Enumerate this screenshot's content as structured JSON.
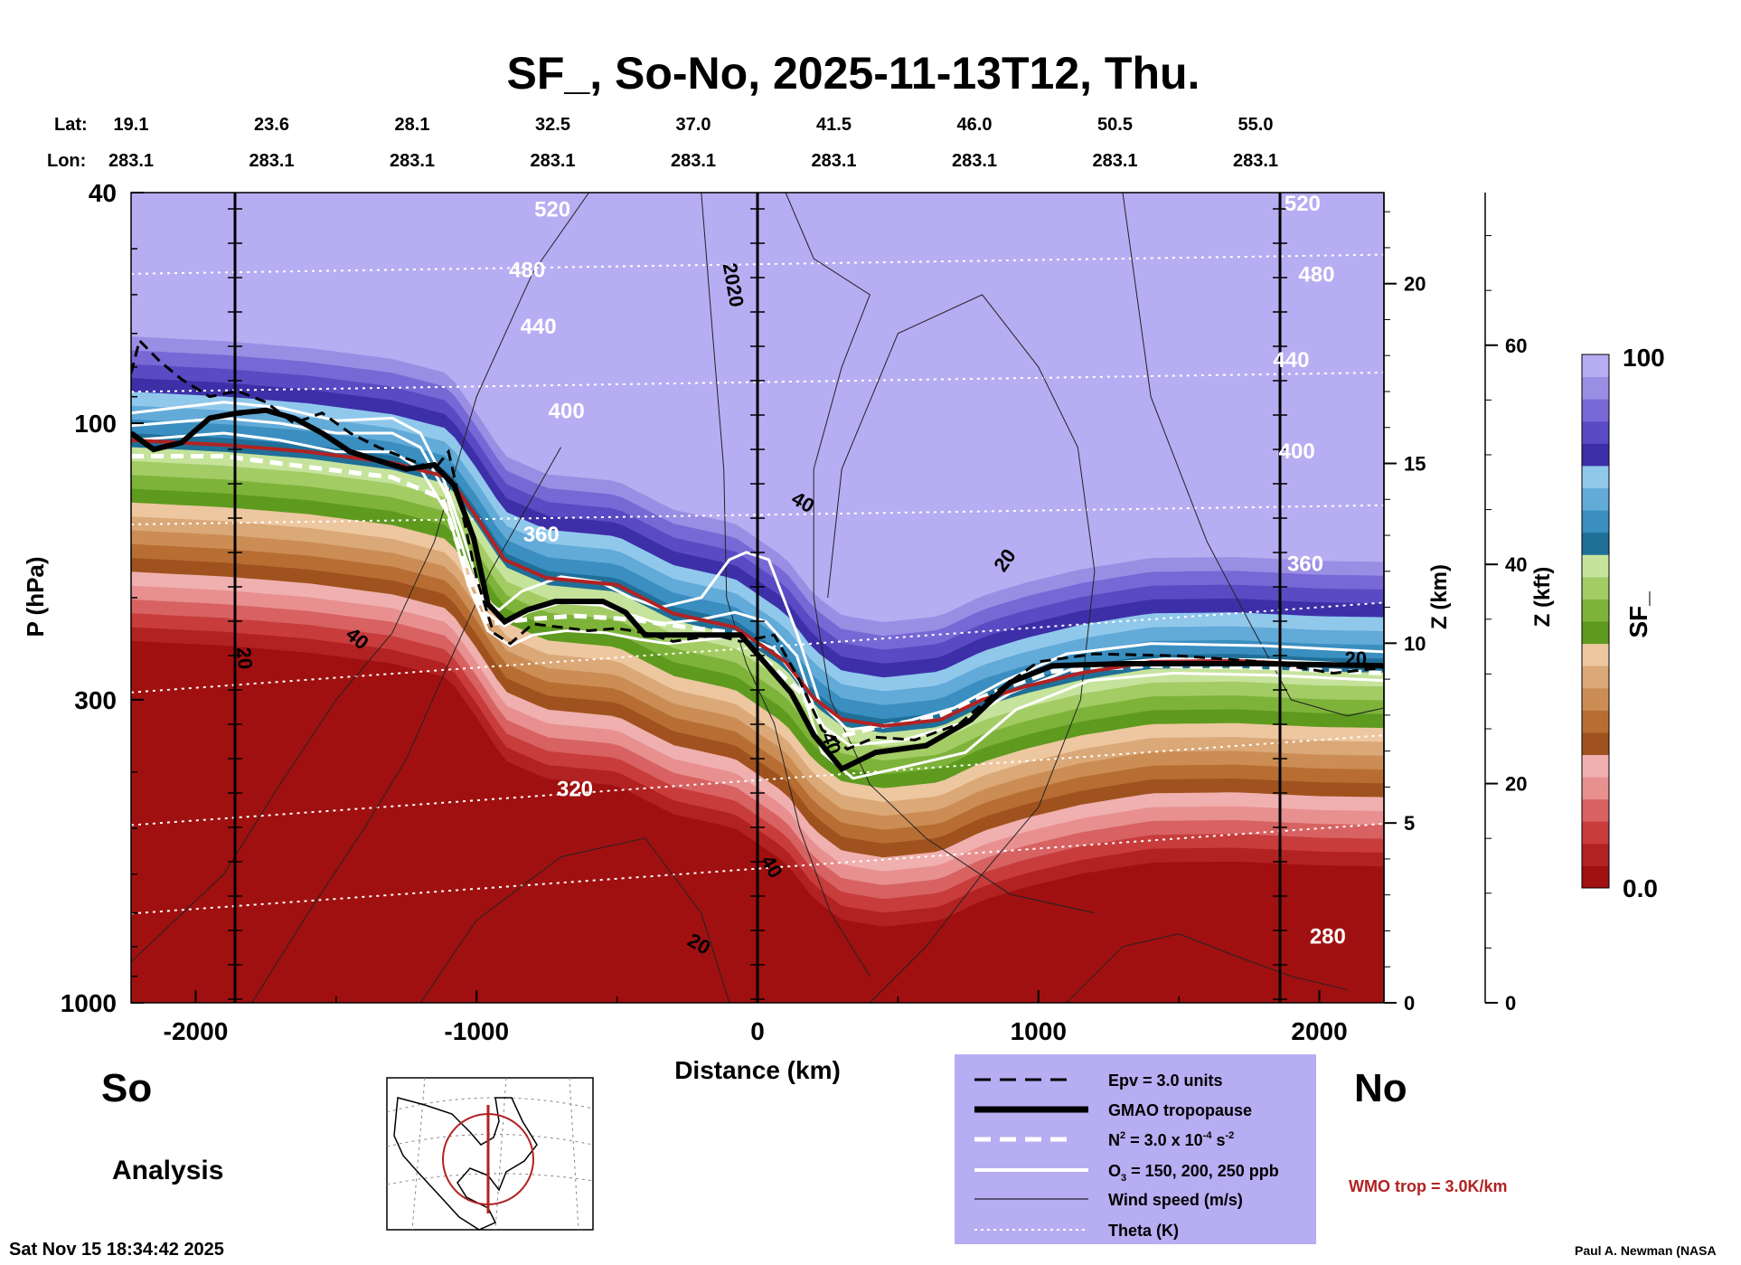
{
  "title": "SF_, So-No, 2025-11-13T12, Thu.",
  "lat_label": "Lat:",
  "lon_label": "Lon:",
  "stations": [
    {
      "lat": "19.1",
      "lon": "283.1"
    },
    {
      "lat": "23.6",
      "lon": "283.1"
    },
    {
      "lat": "28.1",
      "lon": "283.1"
    },
    {
      "lat": "32.5",
      "lon": "283.1"
    },
    {
      "lat": "37.0",
      "lon": "283.1"
    },
    {
      "lat": "41.5",
      "lon": "283.1"
    },
    {
      "lat": "46.0",
      "lon": "283.1"
    },
    {
      "lat": "50.5",
      "lon": "283.1"
    },
    {
      "lat": "55.0",
      "lon": "283.1"
    }
  ],
  "chart_data": {
    "type": "heatmap",
    "title": "SF_, So-No, 2025-11-13T12, Thu.",
    "xlabel": "Distance (km)",
    "ylabel": "P (hPa)",
    "ylabel_right_km": "Z (km)",
    "ylabel_right_kft": "Z (kft)",
    "xlim": [
      -2230,
      2230
    ],
    "ylim": [
      1000,
      40
    ],
    "y_scale": "log",
    "x_ticks": [
      -2000,
      -1000,
      0,
      1000,
      2000
    ],
    "x_tick_labels": [
      "-2000",
      "-1000",
      "0",
      "1000",
      "2000"
    ],
    "p_ticks": [
      40,
      100,
      300,
      1000
    ],
    "p_tick_labels": [
      "40",
      "100",
      "300",
      "1000"
    ],
    "z_km_ticks": [
      0,
      5,
      10,
      15,
      20
    ],
    "z_km_labels": [
      "0",
      "5",
      "10",
      "15",
      "20"
    ],
    "z_kft_ticks": [
      0,
      20,
      40,
      60
    ],
    "z_kft_labels": [
      "0",
      "20",
      "40",
      "60"
    ],
    "colorbar": {
      "label": "SF_",
      "min": 0.0,
      "max": 100,
      "min_label": "0.0",
      "max_label": "100"
    },
    "colors": [
      "#a01010",
      "#b22222",
      "#c83c3c",
      "#d86262",
      "#e89090",
      "#f0b0b0",
      "#a0521e",
      "#b86e33",
      "#cc8d55",
      "#dba878",
      "#edc7a0",
      "#5e9a1e",
      "#7eb33a",
      "#a3cc65",
      "#c6e39c",
      "#1f6f99",
      "#3a8ec0",
      "#62aad8",
      "#90c8ec",
      "#3d2fa8",
      "#5a4ac3",
      "#7868d6",
      "#9a8ee4",
      "#b7adf2"
    ],
    "pressure_annotations": [
      {
        "text": "520",
        "x": -730,
        "p": 44
      },
      {
        "text": "480",
        "x": -820,
        "p": 56
      },
      {
        "text": "440",
        "x": -780,
        "p": 70
      },
      {
        "text": "400",
        "x": -680,
        "p": 98
      },
      {
        "text": "360",
        "x": -770,
        "p": 160
      },
      {
        "text": "320",
        "x": -650,
        "p": 440
      },
      {
        "text": "520",
        "x": 1940,
        "p": 43
      },
      {
        "text": "480",
        "x": 1990,
        "p": 57
      },
      {
        "text": "440",
        "x": 1900,
        "p": 80
      },
      {
        "text": "400",
        "x": 1920,
        "p": 115
      },
      {
        "text": "360",
        "x": 1950,
        "p": 180
      },
      {
        "text": "280",
        "x": 2030,
        "p": 790
      }
    ],
    "wind_labels": [
      {
        "text": "2020",
        "x": -110,
        "p": 58,
        "rot": 80
      },
      {
        "text": "40",
        "x": 150,
        "p": 140,
        "rot": 30
      },
      {
        "text": "20",
        "x": 900,
        "p": 175,
        "rot": -55
      },
      {
        "text": "20",
        "x": -1850,
        "p": 255,
        "rot": 85
      },
      {
        "text": "40",
        "x": -1440,
        "p": 240,
        "rot": 40
      },
      {
        "text": "40",
        "x": 30,
        "p": 590,
        "rot": 60
      },
      {
        "text": "20",
        "x": -220,
        "p": 810,
        "rot": 30
      },
      {
        "text": "20",
        "x": 2130,
        "p": 262,
        "rot": 0
      },
      {
        "text": "40",
        "x": 240,
        "p": 360,
        "rot": 70
      }
    ],
    "gmao_tropopause": [
      [
        -2230,
        104
      ],
      [
        -2150,
        111
      ],
      [
        -2050,
        108
      ],
      [
        -1950,
        98
      ],
      [
        -1850,
        96
      ],
      [
        -1750,
        95
      ],
      [
        -1650,
        98
      ],
      [
        -1550,
        104
      ],
      [
        -1450,
        112
      ],
      [
        -1350,
        116
      ],
      [
        -1250,
        120
      ],
      [
        -1150,
        118
      ],
      [
        -1080,
        128
      ],
      [
        -1010,
        158
      ],
      [
        -960,
        205
      ],
      [
        -900,
        220
      ],
      [
        -820,
        210
      ],
      [
        -720,
        203
      ],
      [
        -550,
        203
      ],
      [
        -470,
        212
      ],
      [
        -400,
        232
      ],
      [
        -250,
        232
      ],
      [
        -60,
        232
      ],
      [
        120,
        292
      ],
      [
        200,
        345
      ],
      [
        300,
        395
      ],
      [
        420,
        370
      ],
      [
        600,
        360
      ],
      [
        760,
        325
      ],
      [
        900,
        280
      ],
      [
        1050,
        262
      ],
      [
        1300,
        260
      ],
      [
        1800,
        260
      ],
      [
        2230,
        262
      ]
    ],
    "wmo_tropopause": [
      [
        -2230,
        107
      ],
      [
        -1900,
        109
      ],
      [
        -1600,
        112
      ],
      [
        -1300,
        117
      ],
      [
        -1100,
        124
      ],
      [
        -1000,
        145
      ],
      [
        -900,
        172
      ],
      [
        -750,
        185
      ],
      [
        -500,
        190
      ],
      [
        -300,
        213
      ],
      [
        -80,
        225
      ],
      [
        100,
        258
      ],
      [
        200,
        298
      ],
      [
        300,
        324
      ],
      [
        450,
        333
      ],
      [
        650,
        325
      ],
      [
        800,
        300
      ],
      [
        950,
        285
      ],
      [
        1150,
        270
      ],
      [
        1400,
        258
      ],
      [
        1700,
        257
      ],
      [
        2000,
        261
      ],
      [
        2230,
        262
      ]
    ],
    "n2_line": [
      [
        -2230,
        114
      ],
      [
        -1900,
        114
      ],
      [
        -1600,
        119
      ],
      [
        -1300,
        124
      ],
      [
        -1120,
        135
      ],
      [
        -1040,
        178
      ],
      [
        -960,
        222
      ],
      [
        -820,
        218
      ],
      [
        -650,
        215
      ],
      [
        -450,
        218
      ],
      [
        -250,
        225
      ],
      [
        -80,
        230
      ],
      [
        150,
        290
      ],
      [
        260,
        350
      ],
      [
        420,
        335
      ],
      [
        650,
        320
      ],
      [
        850,
        290
      ],
      [
        1050,
        268
      ],
      [
        1400,
        262
      ],
      [
        1800,
        264
      ],
      [
        2230,
        270
      ]
    ],
    "epv_line": [
      [
        -2230,
        82
      ],
      [
        -2200,
        72
      ],
      [
        -2130,
        78
      ],
      [
        -2050,
        84
      ],
      [
        -1950,
        90
      ],
      [
        -1850,
        88
      ],
      [
        -1750,
        92
      ],
      [
        -1650,
        100
      ],
      [
        -1550,
        96
      ],
      [
        -1450,
        104
      ],
      [
        -1350,
        110
      ],
      [
        -1250,
        115
      ],
      [
        -1150,
        120
      ],
      [
        -1100,
        112
      ],
      [
        -1060,
        136
      ],
      [
        -1000,
        185
      ],
      [
        -940,
        230
      ],
      [
        -880,
        240
      ],
      [
        -800,
        222
      ],
      [
        -700,
        225
      ],
      [
        -600,
        228
      ],
      [
        -500,
        226
      ],
      [
        -400,
        230
      ],
      [
        -300,
        238
      ],
      [
        -150,
        232
      ],
      [
        -60,
        238
      ],
      [
        60,
        232
      ],
      [
        150,
        278
      ],
      [
        230,
        338
      ],
      [
        320,
        365
      ],
      [
        420,
        348
      ],
      [
        560,
        352
      ],
      [
        720,
        330
      ],
      [
        860,
        288
      ],
      [
        1000,
        258
      ],
      [
        1200,
        250
      ],
      [
        1500,
        252
      ],
      [
        1800,
        258
      ],
      [
        2050,
        270
      ],
      [
        2230,
        264
      ]
    ],
    "o3_lines": [
      [
        [
          -2230,
          96
        ],
        [
          -1900,
          92
        ],
        [
          -1700,
          94
        ],
        [
          -1500,
          99
        ],
        [
          -1300,
          98
        ],
        [
          -1200,
          104
        ],
        [
          -1120,
          124
        ],
        [
          -1050,
          155
        ],
        [
          -980,
          200
        ],
        [
          -920,
          210
        ],
        [
          -840,
          195
        ],
        [
          -700,
          184
        ],
        [
          -560,
          188
        ],
        [
          -450,
          200
        ],
        [
          -350,
          208
        ],
        [
          -200,
          200
        ],
        [
          -100,
          172
        ],
        [
          -40,
          167
        ],
        [
          40,
          172
        ],
        [
          140,
          230
        ],
        [
          220,
          302
        ],
        [
          320,
          338
        ],
        [
          500,
          330
        ],
        [
          700,
          310
        ],
        [
          880,
          278
        ],
        [
          1100,
          250
        ],
        [
          1400,
          240
        ],
        [
          1800,
          242
        ],
        [
          2230,
          248
        ]
      ],
      [
        [
          -2230,
          101
        ],
        [
          -1900,
          98
        ],
        [
          -1700,
          100
        ],
        [
          -1500,
          104
        ],
        [
          -1300,
          104
        ],
        [
          -1200,
          110
        ],
        [
          -1110,
          132
        ],
        [
          -1040,
          170
        ],
        [
          -970,
          212
        ],
        [
          -900,
          224
        ],
        [
          -820,
          212
        ],
        [
          -700,
          204
        ],
        [
          -560,
          206
        ],
        [
          -450,
          214
        ],
        [
          -350,
          222
        ],
        [
          -200,
          218
        ],
        [
          -80,
          212
        ],
        [
          30,
          220
        ],
        [
          140,
          252
        ],
        [
          220,
          330
        ],
        [
          330,
          360
        ],
        [
          520,
          352
        ],
        [
          720,
          330
        ],
        [
          900,
          292
        ],
        [
          1150,
          262
        ],
        [
          1450,
          255
        ],
        [
          1800,
          256
        ],
        [
          2230,
          262
        ]
      ],
      [
        [
          -2230,
          107
        ],
        [
          -1900,
          104
        ],
        [
          -1700,
          107
        ],
        [
          -1500,
          112
        ],
        [
          -1300,
          112
        ],
        [
          -1200,
          120
        ],
        [
          -1100,
          144
        ],
        [
          -1030,
          190
        ],
        [
          -960,
          228
        ],
        [
          -880,
          242
        ],
        [
          -800,
          232
        ],
        [
          -680,
          228
        ],
        [
          -540,
          230
        ],
        [
          -420,
          236
        ],
        [
          -320,
          240
        ],
        [
          -180,
          236
        ],
        [
          -60,
          232
        ],
        [
          60,
          245
        ],
        [
          150,
          280
        ],
        [
          230,
          370
        ],
        [
          340,
          410
        ],
        [
          540,
          390
        ],
        [
          740,
          370
        ],
        [
          920,
          312
        ],
        [
          1180,
          278
        ],
        [
          1480,
          270
        ],
        [
          1820,
          272
        ],
        [
          2230,
          278
        ]
      ]
    ]
  },
  "legend": {
    "epv": "Epv = 3.0 units",
    "gmao": "GMAO tropopause",
    "n2_main": "N",
    "n2_exp": "2",
    "n2_mid": " = 3.0 x 10",
    "n2_exp2": "-4",
    "n2_unit": " s",
    "n2_exp3": "-2",
    "o3_main": "O",
    "o3_sub": "3",
    "o3_rest": " = 150, 200, 250 ppb",
    "wind": "Wind speed (m/s)",
    "theta": "Theta (K)"
  },
  "wmo_label": "WMO trop = 3.0K/km",
  "south_label": "So",
  "north_label": "No",
  "analysis_label": "Analysis",
  "timestamp": "Sat Nov 15 18:34:42 2025",
  "author": "Paul A. Newman (NASA",
  "map_colors": {
    "circle": "#b22222",
    "land": "#000000",
    "grid": "#888888"
  }
}
